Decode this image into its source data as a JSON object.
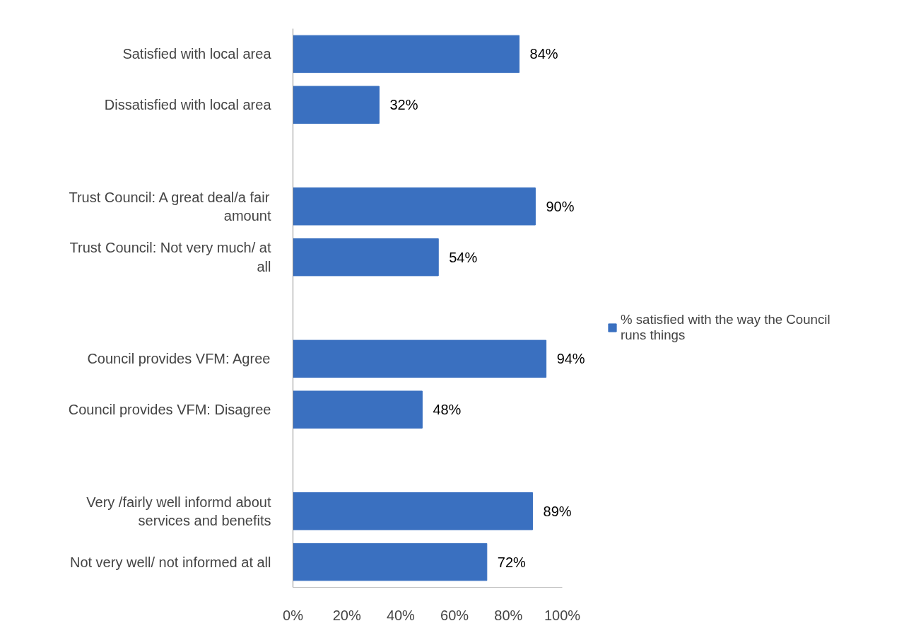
{
  "chart_data": {
    "type": "bar",
    "orientation": "horizontal",
    "categories": [
      "Satisfied with local area",
      "Dissatisfied with local area",
      null,
      "Trust Council: A great deal/a fair amount",
      "Trust Council: Not very much/ at all",
      null,
      "Council provides VFM: Agree",
      "Council provides VFM: Disagree",
      null,
      "Very /fairly well informd about services and benefits",
      "Not very well/ not informed at all"
    ],
    "series": [
      {
        "name": "% satisfied with the way the Council runs things",
        "color": "#3a70c0",
        "values": [
          84,
          32,
          null,
          90,
          54,
          null,
          94,
          48,
          null,
          89,
          72
        ],
        "value_labels": [
          "84%",
          "32%",
          null,
          "90%",
          "54%",
          null,
          "94%",
          "48%",
          null,
          "89%",
          "72%"
        ]
      }
    ],
    "xlim": [
      0,
      100
    ],
    "xticks": [
      {
        "value": 0,
        "label": "0%"
      },
      {
        "value": 20,
        "label": "20%"
      },
      {
        "value": 40,
        "label": "40%"
      },
      {
        "value": 60,
        "label": "60%"
      },
      {
        "value": 80,
        "label": "80%"
      },
      {
        "value": 100,
        "label": "100%"
      }
    ],
    "grid": false,
    "legend": "right"
  }
}
